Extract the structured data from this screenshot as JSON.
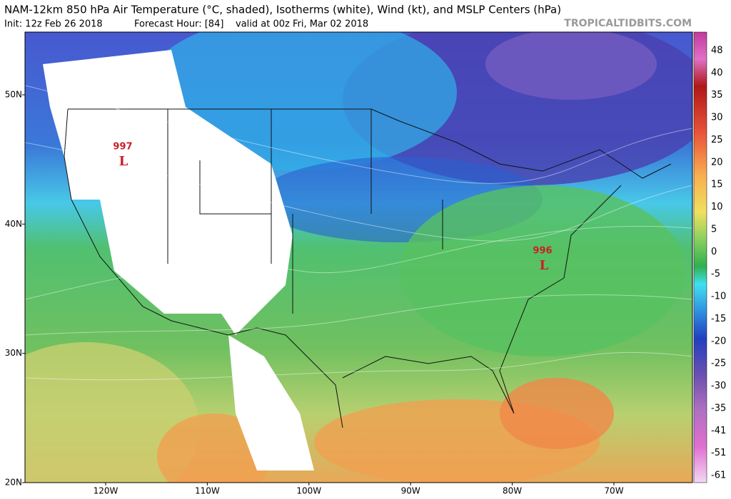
{
  "header": {
    "title": "NAM-12km 850 hPa Air Temperature (°C, shaded), Isotherms (white), Wind (kt), and MSLP Centers (hPa)",
    "init": "Init: 12z Feb 26 2018",
    "forecast": "Forecast Hour: [84]",
    "valid": "valid at 00z Fri, Mar 02 2018",
    "site": "TROPICALTIDBITS.COM"
  },
  "map": {
    "lat_labels": [
      "50N",
      "40N",
      "30N",
      "20N"
    ],
    "lon_labels": [
      "120W",
      "110W",
      "100W",
      "90W",
      "80W",
      "70W"
    ],
    "lows": [
      {
        "pressure": 997,
        "symbol": "L"
      },
      {
        "pressure": 996,
        "symbol": "L"
      }
    ]
  },
  "colorbar": {
    "labels": [
      48,
      40,
      35,
      30,
      25,
      20,
      15,
      10,
      5,
      0,
      -5,
      -10,
      -15,
      -20,
      -25,
      -30,
      -35,
      -41,
      -51,
      -61
    ]
  }
}
